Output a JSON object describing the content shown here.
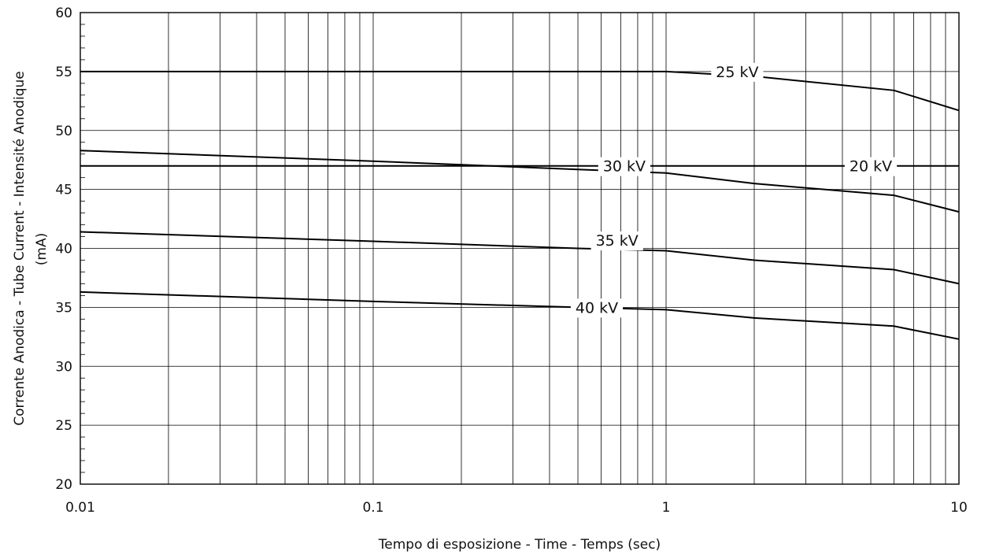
{
  "chart_data": {
    "type": "line",
    "xscale": "log",
    "xlim": [
      0.01,
      10
    ],
    "ylim": [
      20,
      60
    ],
    "grid": true,
    "legend": "inline labels on curves",
    "xlabel": "Tempo di esposizione - Time - Temps  (sec)",
    "ylabel_lines": [
      "Corrente Anodica - Tube Current - Intensité Anodique",
      "(mA)"
    ],
    "x_ticks": [
      {
        "value": 0.01,
        "label": "0.01"
      },
      {
        "value": 0.1,
        "label": "0.1"
      },
      {
        "value": 1,
        "label": "1"
      },
      {
        "value": 10,
        "label": "10"
      }
    ],
    "y_ticks": [
      {
        "value": 20,
        "label": "20"
      },
      {
        "value": 25,
        "label": "25"
      },
      {
        "value": 30,
        "label": "30"
      },
      {
        "value": 35,
        "label": "35"
      },
      {
        "value": 40,
        "label": "40"
      },
      {
        "value": 45,
        "label": "45"
      },
      {
        "value": 50,
        "label": "50"
      },
      {
        "value": 55,
        "label": "55"
      },
      {
        "value": 60,
        "label": "60"
      }
    ],
    "series": [
      {
        "name": "20 kV",
        "points": [
          [
            0.01,
            47
          ],
          [
            10,
            47
          ]
        ],
        "label_at": [
          5,
          47
        ]
      },
      {
        "name": "25 kV",
        "points": [
          [
            0.01,
            55
          ],
          [
            1,
            55
          ],
          [
            2,
            54.6
          ],
          [
            6,
            53.4
          ],
          [
            10,
            51.7
          ]
        ],
        "label_at": [
          1.75,
          55
        ]
      },
      {
        "name": "30 kV",
        "points": [
          [
            0.01,
            48.3
          ],
          [
            0.1,
            47.4
          ],
          [
            0.5,
            46.7
          ],
          [
            1,
            46.4
          ],
          [
            2,
            45.5
          ],
          [
            6,
            44.5
          ],
          [
            10,
            43.1
          ]
        ],
        "label_at": [
          0.72,
          47
        ]
      },
      {
        "name": "35 kV",
        "points": [
          [
            0.01,
            41.4
          ],
          [
            0.1,
            40.6
          ],
          [
            0.5,
            40
          ],
          [
            1,
            39.8
          ],
          [
            2,
            39
          ],
          [
            6,
            38.2
          ],
          [
            10,
            37
          ]
        ],
        "label_at": [
          0.68,
          40.7
        ]
      },
      {
        "name": "40 kV",
        "points": [
          [
            0.01,
            36.3
          ],
          [
            0.1,
            35.5
          ],
          [
            0.5,
            35
          ],
          [
            1,
            34.8
          ],
          [
            2,
            34.1
          ],
          [
            6,
            33.4
          ],
          [
            10,
            32.3
          ]
        ],
        "label_at": [
          0.58,
          35
        ]
      }
    ]
  }
}
